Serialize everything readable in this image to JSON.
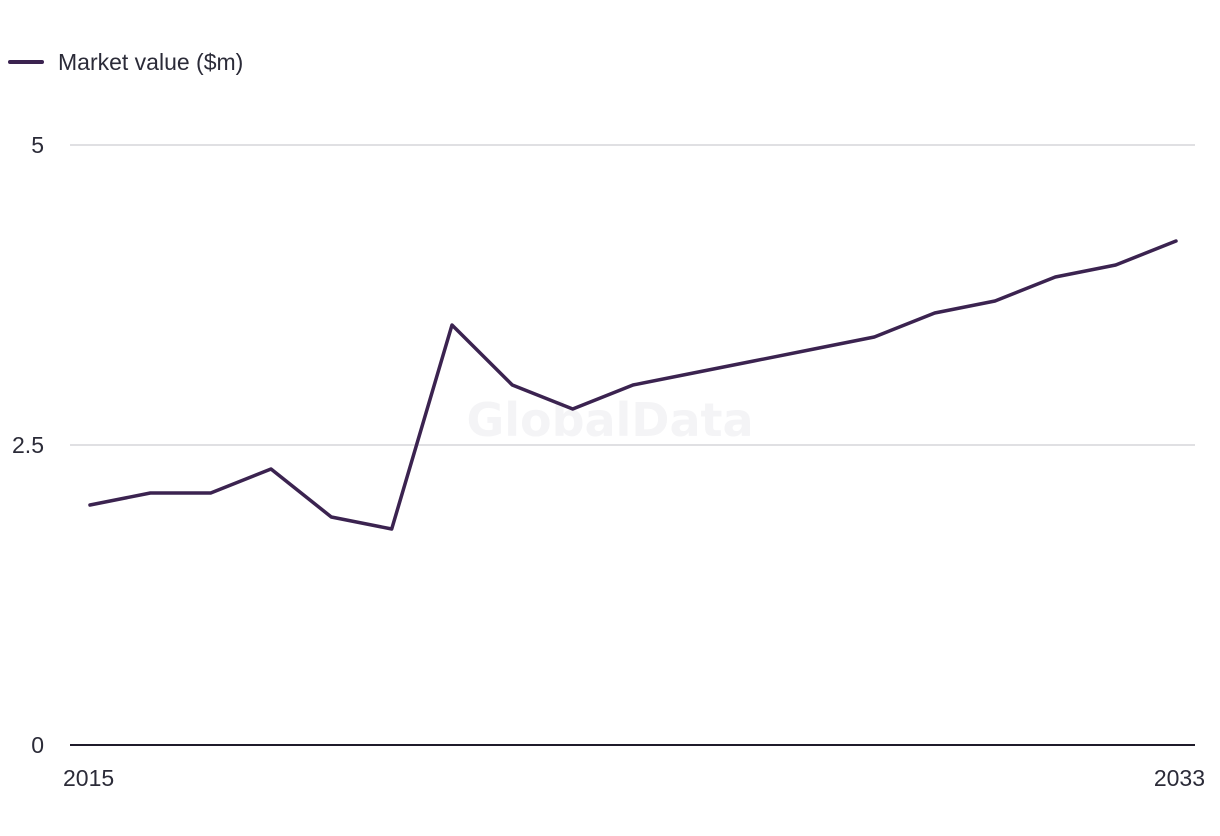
{
  "chart_data": {
    "type": "line",
    "title": "",
    "xlabel": "",
    "ylabel": "",
    "x": [
      2015,
      2016,
      2017,
      2018,
      2019,
      2020,
      2021,
      2022,
      2023,
      2024,
      2025,
      2026,
      2027,
      2028,
      2029,
      2030,
      2031,
      2032,
      2033
    ],
    "x_tick_labels": [
      "2015",
      "2033"
    ],
    "y_ticks": [
      0,
      2.5,
      5
    ],
    "y_tick_labels": [
      "0",
      "2.5",
      "5"
    ],
    "ylim": [
      0,
      5
    ],
    "grid": true,
    "legend_position": "top-left",
    "series": [
      {
        "name": "Market value ($m)",
        "color": "#3b2350",
        "values": [
          2.0,
          2.1,
          2.1,
          2.3,
          1.9,
          1.8,
          3.5,
          3.0,
          2.8,
          3.0,
          3.1,
          3.2,
          3.3,
          3.4,
          3.6,
          3.7,
          3.9,
          4.0,
          4.2
        ]
      }
    ]
  },
  "watermark": "GlobalData",
  "colors": {
    "line": "#3b2350",
    "grid": "#d6d6da",
    "axis": "#1f1b2a",
    "text": "#2b2b38"
  }
}
